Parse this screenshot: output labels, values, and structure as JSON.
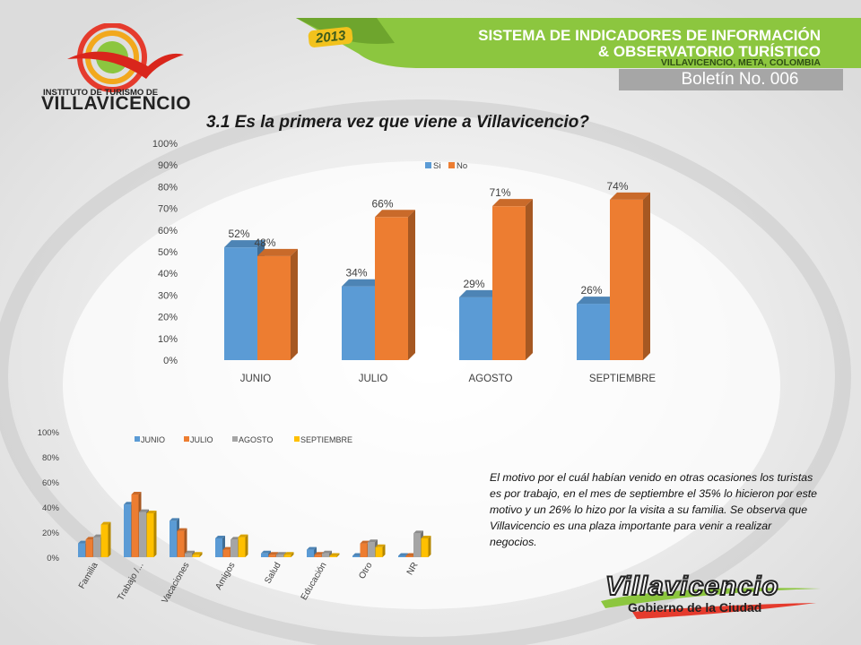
{
  "header": {
    "year": "2013",
    "system_line1": "SISTEMA DE INDICADORES DE INFORMACIÓN",
    "system_line2": "& OBSERVATORIO TURÍSTICO",
    "location": "VILLAVICENCIO, META, COLOMBIA",
    "bulletin": "Boletín No. 006",
    "institute_line1": "INSTITUTO DE TURISMO DE",
    "institute_line2": "VILLAVICENCIO"
  },
  "page_title": "3.1 Es la primera vez que viene a Villavicencio?",
  "paragraph": "El motivo por el cuál habían venido en otras ocasiones los turistas es por trabajo, en el mes de septiembre el 35% lo hicieron por este motivo y un 26% lo hizo por la visita a su familia. Se observa que Villavicencio es una plaza importante para venir a realizar negocios.",
  "footer_logo": {
    "name": "Villavicencio",
    "tagline": "Gobierno de la Ciudad"
  },
  "colors": {
    "si": "#5b9bd5",
    "no": "#ed7d31",
    "gray": "#a5a5a5",
    "yellow": "#ffc000",
    "accent_green": "#8cc63f"
  },
  "chart_data": [
    {
      "type": "bar",
      "title": "",
      "categories": [
        "JUNIO",
        "JULIO",
        "AGOSTO",
        "SEPTIEMBRE"
      ],
      "series": [
        {
          "name": "Si",
          "values": [
            52,
            34,
            29,
            26
          ],
          "labels": [
            "52%",
            "34%",
            "29%",
            "26%"
          ]
        },
        {
          "name": "No",
          "values": [
            48,
            66,
            71,
            74
          ],
          "labels": [
            "48%",
            "66%",
            "71%",
            "74%"
          ]
        }
      ],
      "ylim": [
        0,
        100
      ],
      "yticks": [
        "0%",
        "10%",
        "20%",
        "30%",
        "40%",
        "50%",
        "60%",
        "70%",
        "80%",
        "90%",
        "100%"
      ],
      "legend": "top-center",
      "grid": false
    },
    {
      "type": "bar",
      "title": "",
      "categories": [
        "Familia",
        "Trabajo /...",
        "Vacaciones",
        "Amigos",
        "Salud",
        "Educación",
        "Otro",
        "NR"
      ],
      "series": [
        {
          "name": "JUNIO",
          "values": [
            11,
            42,
            29,
            15,
            3,
            6,
            1,
            1
          ]
        },
        {
          "name": "JULIO",
          "values": [
            14,
            50,
            21,
            6,
            2,
            2,
            11,
            1
          ]
        },
        {
          "name": "AGOSTO",
          "values": [
            16,
            36,
            3,
            14,
            2,
            3,
            12,
            19
          ]
        },
        {
          "name": "SEPTIEMBRE",
          "values": [
            26,
            35,
            2,
            16,
            2,
            1,
            8,
            15
          ]
        }
      ],
      "ylim": [
        0,
        100
      ],
      "yticks": [
        "0%",
        "20%",
        "40%",
        "60%",
        "80%",
        "100%"
      ],
      "legend": "top-center",
      "grid": false
    }
  ]
}
